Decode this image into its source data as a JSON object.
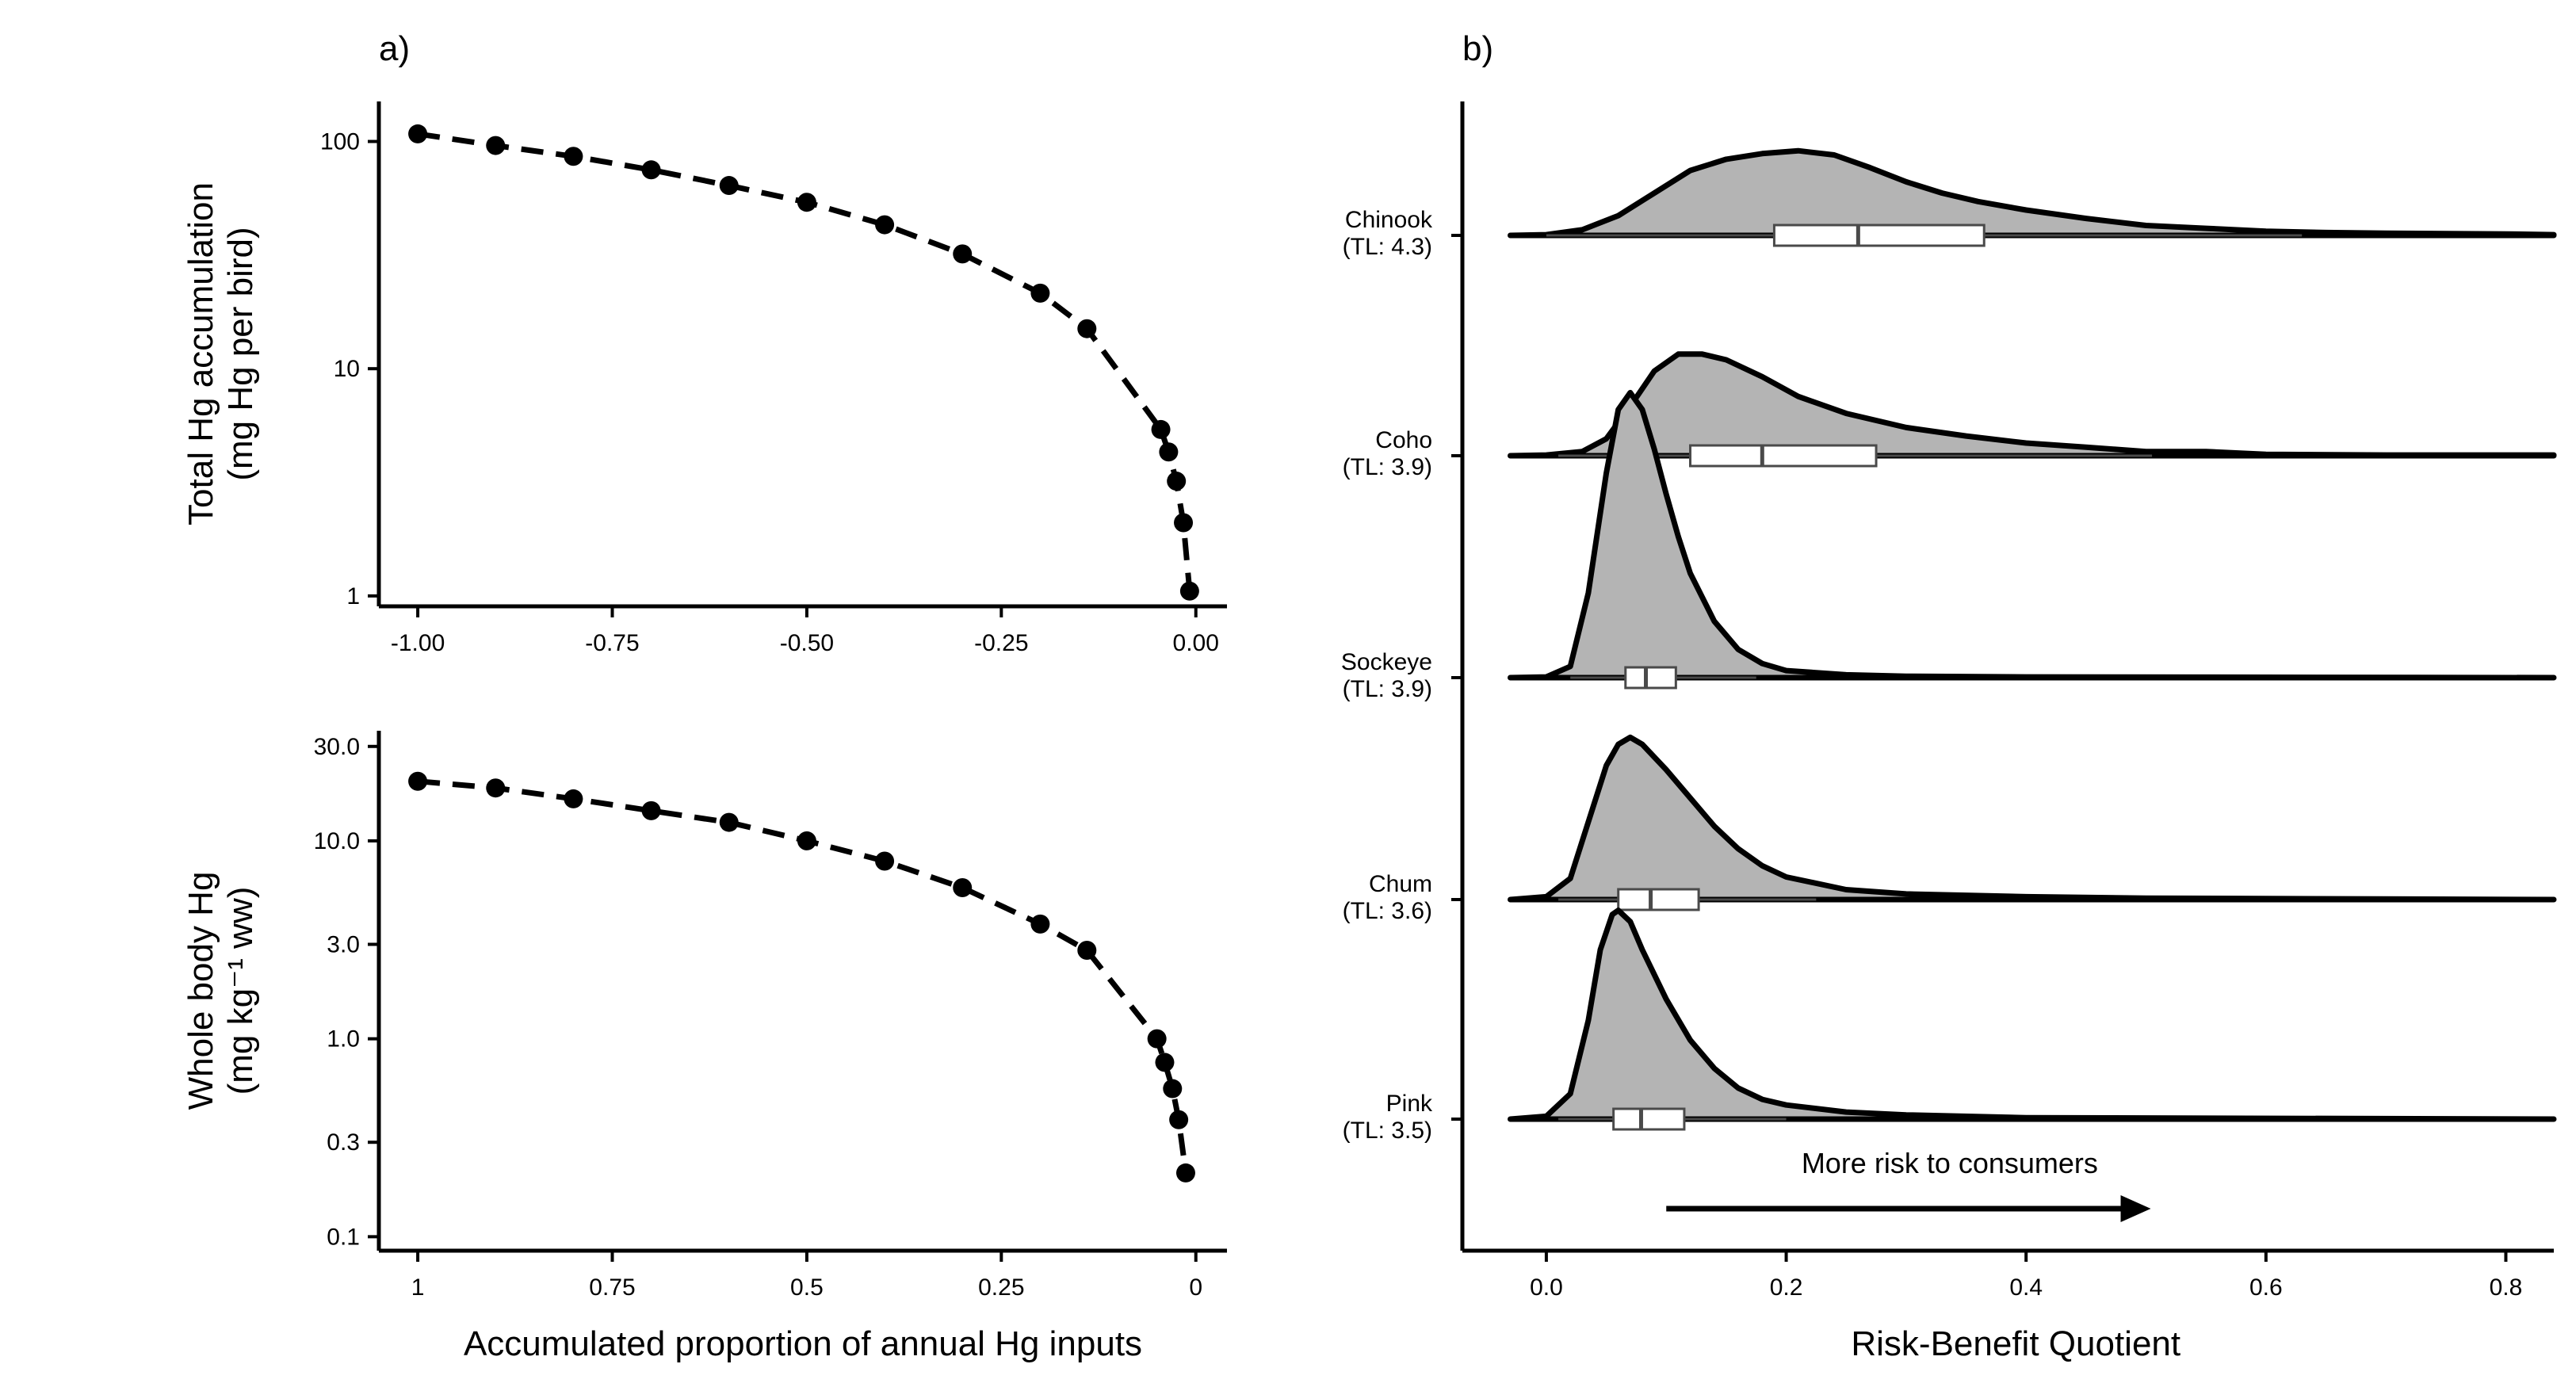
{
  "chart_data": [
    {
      "panel": "a)",
      "type": "line",
      "x": [
        -1.0,
        -0.9,
        -0.8,
        -0.7,
        -0.6,
        -0.5,
        -0.4,
        -0.3,
        -0.2,
        -0.14,
        -0.045,
        -0.035,
        -0.025,
        -0.016,
        -0.008
      ],
      "series": [
        {
          "values": [
            108,
            96,
            86,
            75,
            64,
            54,
            43,
            32,
            21.5,
            15,
            5.4,
            4.3,
            3.2,
            2.1,
            1.05
          ]
        }
      ],
      "title": "",
      "xlabel": "",
      "ylabel": [
        "Total Hg accumulation",
        "(mg Hg per bird)"
      ],
      "scale_y": "log",
      "ylim": [
        0.9,
        150
      ],
      "xlim": [
        -1.05,
        0.04
      ],
      "x_ticks": [
        -1.0,
        -0.75,
        -0.5,
        -0.25,
        0.0
      ],
      "x_tick_labels": [
        "-1.00",
        "-0.75",
        "-0.50",
        "-0.25",
        "0.00"
      ],
      "y_ticks": [
        1,
        10,
        100
      ],
      "y_tick_labels": [
        "1",
        "10",
        "100"
      ],
      "style": "dashed line with points",
      "grid": false
    },
    {
      "type": "line",
      "x": [
        1.0,
        0.9,
        0.8,
        0.7,
        0.6,
        0.5,
        0.4,
        0.3,
        0.2,
        0.14,
        0.05,
        0.04,
        0.03,
        0.022,
        0.013
      ],
      "series": [
        {
          "values": [
            20,
            18.5,
            16.3,
            14.2,
            12.4,
            10,
            7.9,
            5.8,
            3.8,
            2.8,
            1.0,
            0.76,
            0.56,
            0.39,
            0.21
          ]
        }
      ],
      "title": "",
      "xlabel": "Accumulated proportion of annual Hg inputs",
      "ylabel": [
        "Whole body Hg",
        "(mg kg⁻¹ ww)"
      ],
      "scale_y": "log",
      "ylim": [
        0.085,
        36
      ],
      "xlim": [
        1.05,
        -0.04
      ],
      "x_ticks": [
        1.0,
        0.75,
        0.5,
        0.25,
        0.0
      ],
      "x_tick_labels": [
        "1",
        "0.75",
        "0.5",
        "0.25",
        "0"
      ],
      "y_ticks": [
        0.1,
        0.3,
        1.0,
        3.0,
        10.0,
        30.0
      ],
      "y_tick_labels": [
        "0.1",
        "0.3",
        "1.0",
        "3.0",
        "10.0",
        "30.0"
      ],
      "style": "dashed line with points",
      "grid": false
    },
    {
      "panel": "b)",
      "type": "area",
      "subtype": "ridgeline density with boxplot",
      "title": "",
      "xlabel": "Risk-Benefit Quotient",
      "ylabel": "",
      "xlim": [
        -0.07,
        0.84
      ],
      "x_ticks": [
        0.0,
        0.2,
        0.4,
        0.6,
        0.8
      ],
      "x_tick_labels": [
        "0.0",
        "0.2",
        "0.4",
        "0.6",
        "0.8"
      ],
      "annotation": "More risk to consumers",
      "arrow_x": [
        0.1,
        0.5
      ],
      "grid": false,
      "series": [
        {
          "label": [
            "Chinook",
            "(TL: 4.3)"
          ],
          "density_x": [
            -0.03,
            0.0,
            0.03,
            0.06,
            0.09,
            0.12,
            0.15,
            0.18,
            0.21,
            0.24,
            0.27,
            0.3,
            0.33,
            0.36,
            0.4,
            0.45,
            0.5,
            0.55,
            0.6,
            0.65,
            0.7,
            0.8,
            0.84
          ],
          "density_height": [
            0,
            0.005,
            0.04,
            0.14,
            0.3,
            0.46,
            0.54,
            0.58,
            0.6,
            0.57,
            0.48,
            0.38,
            0.3,
            0.24,
            0.18,
            0.12,
            0.07,
            0.05,
            0.03,
            0.02,
            0.015,
            0.01,
            0.005
          ],
          "box": {
            "whisker_low": 0.0,
            "q1": 0.19,
            "median": 0.26,
            "q3": 0.365,
            "whisker_high": 0.63
          }
        },
        {
          "label": [
            "Coho",
            "(TL: 3.9)"
          ],
          "density_x": [
            -0.03,
            0.0,
            0.03,
            0.05,
            0.07,
            0.09,
            0.11,
            0.13,
            0.15,
            0.18,
            0.21,
            0.25,
            0.3,
            0.35,
            0.4,
            0.45,
            0.5,
            0.55,
            0.6,
            0.7,
            0.84
          ],
          "density_height": [
            0,
            0.005,
            0.03,
            0.12,
            0.35,
            0.6,
            0.72,
            0.72,
            0.68,
            0.56,
            0.42,
            0.3,
            0.2,
            0.14,
            0.09,
            0.06,
            0.03,
            0.03,
            0.01,
            0.005,
            0.005
          ],
          "box": {
            "whisker_low": 0.01,
            "q1": 0.12,
            "median": 0.18,
            "q3": 0.275,
            "whisker_high": 0.505
          }
        },
        {
          "label": [
            "Sockeye",
            "(TL: 3.9)"
          ],
          "density_x": [
            -0.03,
            0.0,
            0.02,
            0.035,
            0.05,
            0.06,
            0.07,
            0.08,
            0.09,
            0.1,
            0.11,
            0.12,
            0.14,
            0.16,
            0.18,
            0.2,
            0.25,
            0.3,
            0.4,
            0.84
          ],
          "density_height": [
            0,
            0.005,
            0.08,
            0.6,
            1.45,
            1.9,
            2.02,
            1.9,
            1.62,
            1.3,
            1.0,
            0.74,
            0.4,
            0.2,
            0.1,
            0.05,
            0.02,
            0.01,
            0.005,
            0
          ],
          "box": {
            "whisker_low": 0.02,
            "q1": 0.066,
            "median": 0.083,
            "q3": 0.108,
            "whisker_high": 0.175
          }
        },
        {
          "label": [
            "Chum",
            "(TL: 3.6)"
          ],
          "density_x": [
            -0.03,
            0.0,
            0.02,
            0.035,
            0.05,
            0.06,
            0.07,
            0.08,
            0.1,
            0.12,
            0.14,
            0.16,
            0.18,
            0.2,
            0.25,
            0.3,
            0.4,
            0.5,
            0.84
          ],
          "density_height": [
            0,
            0.02,
            0.15,
            0.55,
            0.95,
            1.1,
            1.15,
            1.1,
            0.92,
            0.72,
            0.52,
            0.36,
            0.24,
            0.16,
            0.07,
            0.04,
            0.02,
            0.01,
            0
          ],
          "box": {
            "whisker_low": 0.01,
            "q1": 0.06,
            "median": 0.087,
            "q3": 0.127,
            "whisker_high": 0.225
          }
        },
        {
          "label": [
            "Pink",
            "(TL: 3.5)"
          ],
          "density_x": [
            -0.03,
            0.0,
            0.02,
            0.035,
            0.045,
            0.055,
            0.06,
            0.07,
            0.08,
            0.1,
            0.12,
            0.14,
            0.16,
            0.18,
            0.2,
            0.25,
            0.3,
            0.4,
            0.84
          ],
          "density_height": [
            0,
            0.02,
            0.18,
            0.7,
            1.2,
            1.45,
            1.48,
            1.4,
            1.2,
            0.85,
            0.56,
            0.36,
            0.22,
            0.14,
            0.1,
            0.05,
            0.03,
            0.01,
            0
          ],
          "box": {
            "whisker_low": 0.01,
            "q1": 0.056,
            "median": 0.079,
            "q3": 0.115,
            "whisker_high": 0.2
          }
        }
      ]
    }
  ]
}
